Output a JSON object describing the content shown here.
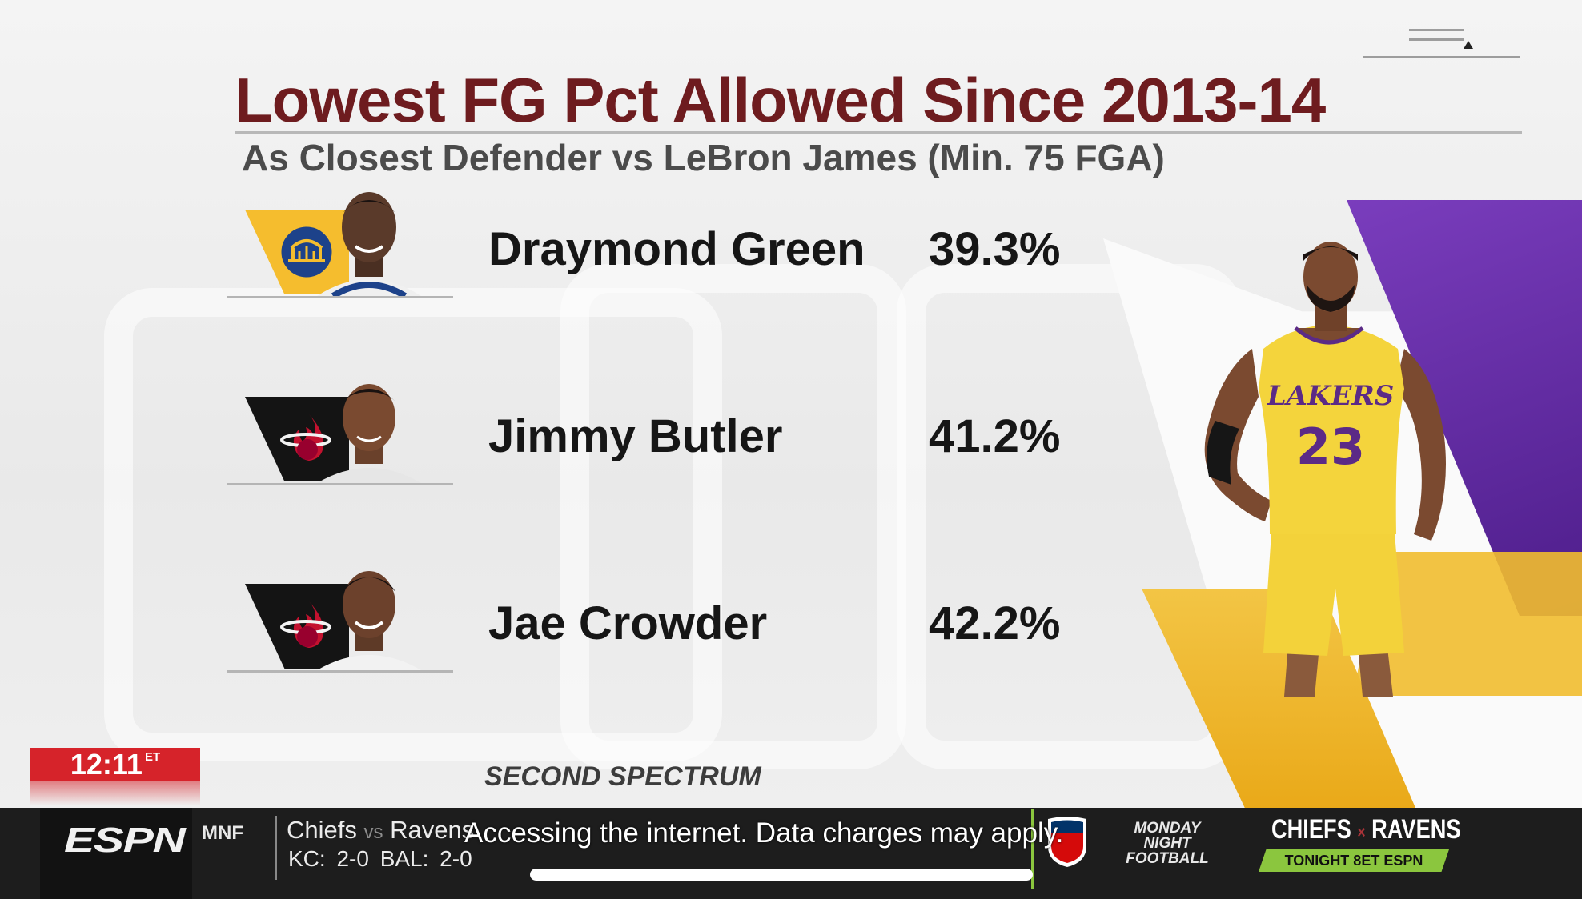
{
  "graphic": {
    "title": "Lowest FG Pct Allowed Since 2013-14",
    "subtitle": "As Closest Defender vs LeBron James (Min. 75 FGA)",
    "source": "SECOND SPECTRUM",
    "title_color": "#6e1c1f",
    "rows": [
      {
        "player": "Draymond Green",
        "pct": "39.3%",
        "team_logo": "warriors-logo-icon",
        "tile_color": "#f5bd2e"
      },
      {
        "player": "Jimmy Butler",
        "pct": "41.2%",
        "team_logo": "heat-logo-icon",
        "tile_color": "#141414"
      },
      {
        "player": "Jae Crowder",
        "pct": "42.2%",
        "team_logo": "heat-logo-icon",
        "tile_color": "#141414"
      }
    ],
    "featured_jersey": {
      "team": "LAKERS",
      "number": "23"
    }
  },
  "clock": {
    "time": "12:11",
    "zone": "ET",
    "color": "#d6232a"
  },
  "ticker": {
    "network": "ESPN",
    "segment": "MNF",
    "away_team": "Chiefs",
    "vs": "vs",
    "home_team": "Ravens",
    "records": "KC: 2-0  BAL: 2-0",
    "promo_logo_lines": [
      "MONDAY",
      "NIGHT",
      "FOOTBALL"
    ],
    "promo_matchup_left": "CHIEFS",
    "promo_matchup_sep": "×",
    "promo_matchup_right": "RAVENS",
    "promo_tag": "TONIGHT 8ET ESPN",
    "accent_color": "#8bc63e"
  },
  "system": {
    "toast": "Accessing the internet. Data charges may apply."
  }
}
